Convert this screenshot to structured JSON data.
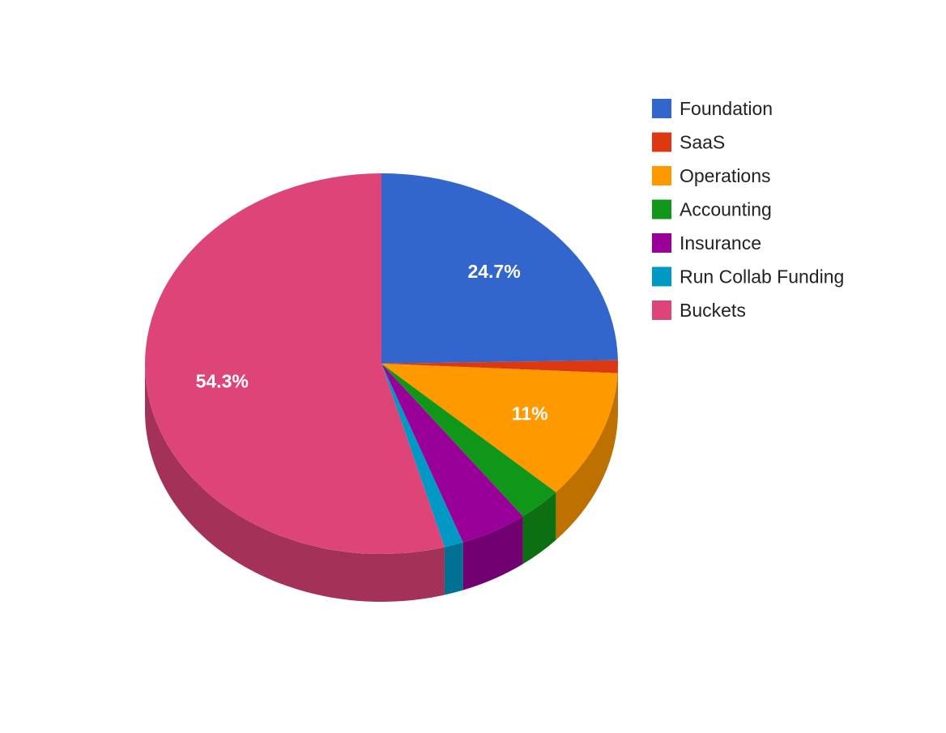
{
  "chart_data": {
    "type": "pie",
    "style": "3d",
    "legend_position": "right",
    "slices": [
      {
        "label": "Foundation",
        "value": 24.7,
        "color": "#3366cc",
        "data_label": "24.7%"
      },
      {
        "label": "SaaS",
        "value": 1.1,
        "color": "#dc3912",
        "data_label": ""
      },
      {
        "label": "Operations",
        "value": 11.0,
        "color": "#ff9900",
        "data_label": "11%"
      },
      {
        "label": "Accounting",
        "value": 3.0,
        "color": "#109618",
        "data_label": ""
      },
      {
        "label": "Insurance",
        "value": 4.6,
        "color": "#990099",
        "data_label": ""
      },
      {
        "label": "Run Collab Funding",
        "value": 1.3,
        "color": "#0099c6",
        "data_label": ""
      },
      {
        "label": "Buckets",
        "value": 54.3,
        "color": "#dd4477",
        "data_label": "54.3%"
      }
    ]
  }
}
